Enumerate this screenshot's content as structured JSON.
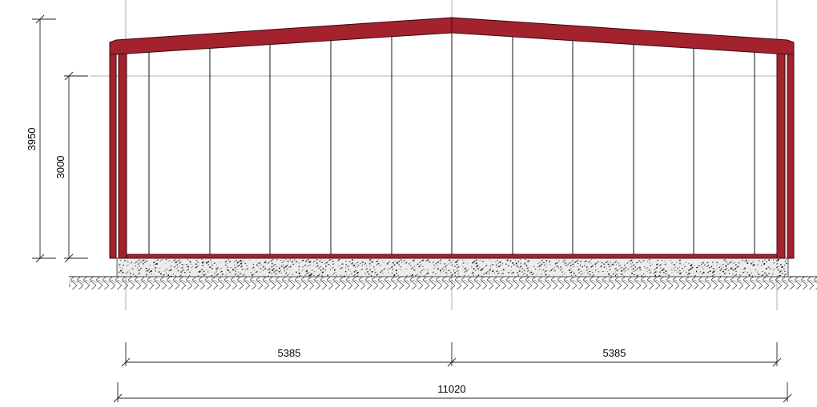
{
  "colors": {
    "steel": "#a3222e",
    "steel_outline": "#3a0a10",
    "foundation": "#e8e8e8",
    "line": "#222222"
  },
  "dimensions": {
    "height_total": "3950",
    "height_eave": "3000",
    "span_left": "5385",
    "span_right": "5385",
    "span_total": "11020"
  }
}
